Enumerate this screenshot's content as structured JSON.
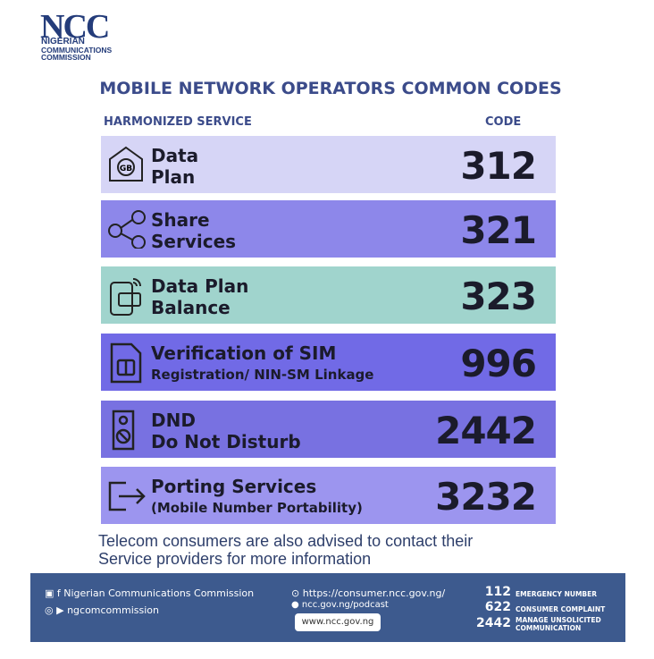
{
  "logo": {
    "mark": "NCC",
    "lines": [
      "NIGERIAN",
      "COMMUNICATIONS",
      "COMMISSION"
    ]
  },
  "title": "MOBILE NETWORK OPERATORS COMMON CODES",
  "headers": {
    "service": "HARMONIZED SERVICE",
    "code": "CODE"
  },
  "rows": [
    {
      "label": [
        "Data",
        "Plan"
      ],
      "code": "312"
    },
    {
      "label": [
        "Share",
        "Services"
      ],
      "code": "321"
    },
    {
      "label": [
        "Data Plan",
        "Balance"
      ],
      "code": "323"
    },
    {
      "label": [
        "Verification of SIM",
        "Registration/ NIN-SM Linkage"
      ],
      "code": "996"
    },
    {
      "label": [
        "DND",
        "Do Not Disturb"
      ],
      "code": "2442"
    },
    {
      "label": [
        "Porting Services",
        "(Mobile Number Portability)"
      ],
      "code": "3232"
    }
  ],
  "note": [
    "Telecom consumers are also advised to contact their",
    "Service providers for more information"
  ],
  "footer": {
    "social": [
      "Nigerian Communications Commission",
      "ngcomcommission"
    ],
    "links": [
      "https://consumer.ncc.gov.ng/",
      "ncc.gov.ng/podcast",
      "www.ncc.gov.ng"
    ],
    "numbers": [
      {
        "number": "112",
        "label": [
          "EMERGENCY NUMBER"
        ]
      },
      {
        "number": "622",
        "label": [
          "CONSUMER COMPLAINT"
        ]
      },
      {
        "number": "2442",
        "label": [
          "MANAGE UNSOLICITED",
          "COMMUNICATION"
        ]
      }
    ]
  }
}
